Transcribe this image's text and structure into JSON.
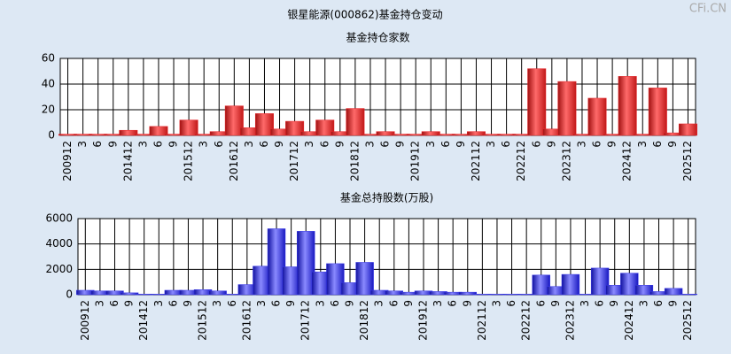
{
  "title": "银星能源(000862)基金持仓变动",
  "watermark": "CFi.CN",
  "chart_data": [
    {
      "type": "bar",
      "title": "基金持仓家数",
      "color": "#e8262b",
      "categories": [
        "200912",
        "3",
        "6",
        "9",
        "201412",
        "3",
        "6",
        "9",
        "201512",
        "3",
        "6",
        "201612",
        "3",
        "6",
        "9",
        "201712",
        "3",
        "6",
        "9",
        "201812",
        "3",
        "6",
        "9",
        "201912",
        "3",
        "6",
        "9",
        "202112",
        "3",
        "6",
        "202212",
        "6",
        "9",
        "202312",
        "3",
        "6",
        "9",
        "202412",
        "3",
        "6",
        "9",
        "202512"
      ],
      "values": [
        1,
        1,
        1,
        1,
        4,
        1,
        7,
        1,
        12,
        1,
        3,
        23,
        6,
        17,
        5,
        11,
        3,
        12,
        3,
        21,
        1,
        3,
        1,
        1,
        3,
        1,
        1,
        3,
        1,
        1,
        1,
        52,
        5,
        42,
        1,
        29,
        1,
        46,
        1,
        37,
        2,
        9
      ],
      "ylim": [
        0,
        60
      ],
      "yticks": [
        0,
        20,
        40,
        60
      ],
      "grid": true
    },
    {
      "type": "bar",
      "title": "基金总持股数(万股)",
      "color": "#3a3ae8",
      "categories": [
        "200912",
        "3",
        "6",
        "9",
        "201412",
        "3",
        "6",
        "9",
        "201512",
        "3",
        "6",
        "201612",
        "3",
        "6",
        "9",
        "201712",
        "3",
        "6",
        "9",
        "201812",
        "3",
        "6",
        "9",
        "201912",
        "3",
        "6",
        "9",
        "202112",
        "3",
        "6",
        "202212",
        "6",
        "9",
        "202312",
        "3",
        "6",
        "9",
        "202412",
        "3",
        "6",
        "9",
        "202512"
      ],
      "values": [
        350,
        300,
        300,
        150,
        50,
        50,
        350,
        350,
        400,
        300,
        50,
        800,
        2250,
        5200,
        2200,
        5000,
        1800,
        2450,
        950,
        2550,
        350,
        300,
        200,
        300,
        250,
        200,
        200,
        50,
        50,
        50,
        50,
        1550,
        650,
        1600,
        50,
        2100,
        750,
        1700,
        750,
        250,
        500,
        50
      ],
      "ylim": [
        0,
        6000
      ],
      "yticks": [
        0,
        2000,
        4000,
        6000
      ],
      "grid": true
    }
  ]
}
